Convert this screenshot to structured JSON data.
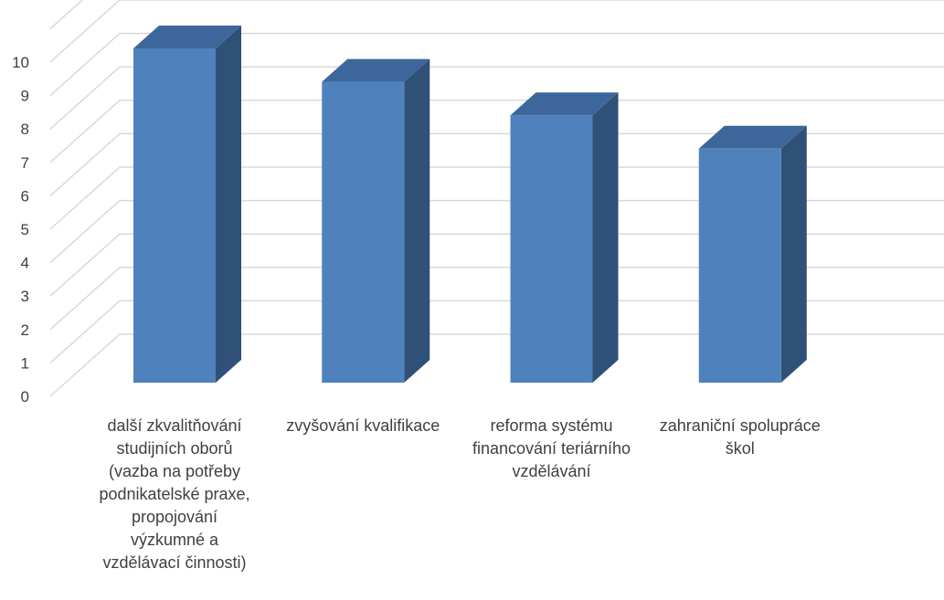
{
  "chart_data": {
    "type": "bar",
    "style": "3d-clustered-column",
    "categories": [
      "další zkvalitňování studijních oborů (vazba na potřeby podnikatelské praxe, propojování výzkumné a vzdělávací činnosti)",
      "zvyšování kvalifikace",
      "reforma systému financování teriárního vzdělávání",
      "zahraniční spolupráce škol"
    ],
    "category_lines": [
      [
        "další zkvalitňování",
        "studijních oborů",
        "(vazba na potřeby",
        "podnikatelské praxe,",
        "propojování",
        "výzkumné a",
        "vzdělávací činnosti)"
      ],
      [
        "zvyšování kvalifikace"
      ],
      [
        "reforma systému",
        "financování teriárního",
        "vzdělávání"
      ],
      [
        "zahraniční spolupráce",
        "škol"
      ]
    ],
    "values": [
      10,
      9,
      8,
      7
    ],
    "y_ticks": [
      "0",
      "1",
      "2",
      "3",
      "4",
      "5",
      "6",
      "7",
      "8",
      "9",
      "10"
    ],
    "ylim": [
      0,
      10
    ],
    "grid": true,
    "legend": "none",
    "title": "",
    "xlabel": "",
    "ylabel": "",
    "colors": {
      "bar_front": "#4f81bd",
      "bar_side": "#2f5077",
      "bar_top": "#3d679a",
      "grid": "#d9d9d9",
      "text": "#404040"
    }
  }
}
